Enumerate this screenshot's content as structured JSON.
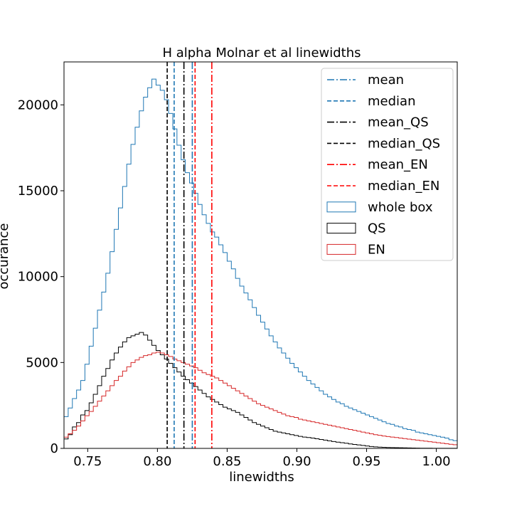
{
  "chart_data": {
    "type": "histogram",
    "title": "H alpha Molnar et al linewidths",
    "xlabel": "linewidths",
    "ylabel": "occurance",
    "xlim": [
      0.733,
      1.015
    ],
    "ylim": [
      0,
      22500
    ],
    "xticks": [
      0.75,
      0.8,
      0.85,
      0.9,
      0.95,
      1.0
    ],
    "xtick_labels": [
      "0.75",
      "0.80",
      "0.85",
      "0.90",
      "0.95",
      "1.00"
    ],
    "yticks": [
      0,
      5000,
      10000,
      15000,
      20000
    ],
    "ytick_labels": [
      "0",
      "5000",
      "10000",
      "15000",
      "20000"
    ],
    "grid": false,
    "legend_position": "top-right",
    "bins": {
      "start": 0.733,
      "width": 0.003,
      "count": 94
    },
    "series": [
      {
        "name": "whole box",
        "color": "#1f77b4",
        "values": [
          1850,
          2350,
          2900,
          3400,
          3950,
          4900,
          5950,
          7000,
          8050,
          9100,
          10200,
          11450,
          12750,
          14000,
          15250,
          16550,
          17700,
          18700,
          19650,
          20450,
          21000,
          21500,
          21150,
          20850,
          20300,
          19500,
          18600,
          17650,
          16800,
          16050,
          15450,
          14850,
          14200,
          13600,
          13100,
          12600,
          12300,
          11850,
          11400,
          10900,
          10450,
          9900,
          9450,
          9050,
          8650,
          8200,
          7750,
          7350,
          6950,
          6550,
          6200,
          5850,
          5550,
          5250,
          4950,
          4700,
          4450,
          4200,
          3950,
          3750,
          3550,
          3350,
          3150,
          3000,
          2850,
          2700,
          2600,
          2450,
          2350,
          2250,
          2150,
          2050,
          1950,
          1850,
          1750,
          1650,
          1550,
          1450,
          1400,
          1300,
          1250,
          1150,
          1100,
          1050,
          950,
          900,
          850,
          800,
          750,
          700,
          650,
          600,
          500,
          450
        ]
      },
      {
        "name": "QS",
        "color": "#000000",
        "values": [
          550,
          800,
          1250,
          1500,
          1950,
          2200,
          2650,
          3150,
          3650,
          4200,
          4650,
          5150,
          5550,
          5900,
          6200,
          6450,
          6550,
          6650,
          6750,
          6600,
          6300,
          6000,
          5700,
          5450,
          5200,
          4950,
          4700,
          4450,
          4200,
          4000,
          3800,
          3600,
          3400,
          3200,
          3000,
          2850,
          2700,
          2550,
          2400,
          2300,
          2200,
          2100,
          1950,
          1800,
          1650,
          1500,
          1400,
          1300,
          1200,
          1100,
          1000,
          950,
          900,
          850,
          800,
          750,
          700,
          660,
          630,
          600,
          560,
          520,
          480,
          440,
          400,
          360,
          330,
          300,
          260,
          230,
          200,
          170,
          140,
          110,
          90,
          70,
          60,
          50,
          45,
          40,
          35,
          30,
          25,
          20,
          15,
          10,
          10,
          10,
          5,
          5,
          5,
          5,
          5,
          5
        ]
      },
      {
        "name": "EN",
        "color": "#d62728",
        "values": [
          650,
          850,
          1050,
          1300,
          1600,
          1900,
          2150,
          2450,
          2750,
          3050,
          3350,
          3650,
          3950,
          4200,
          4500,
          4750,
          5000,
          5150,
          5300,
          5400,
          5450,
          5550,
          5600,
          5550,
          5450,
          5350,
          5200,
          5100,
          5000,
          4900,
          4800,
          4700,
          4550,
          4400,
          4300,
          4200,
          4100,
          3950,
          3800,
          3650,
          3500,
          3350,
          3200,
          3050,
          2900,
          2750,
          2600,
          2500,
          2400,
          2300,
          2200,
          2100,
          2000,
          1900,
          1850,
          1800,
          1700,
          1650,
          1600,
          1550,
          1500,
          1450,
          1400,
          1350,
          1300,
          1250,
          1200,
          1150,
          1100,
          1050,
          1000,
          950,
          900,
          850,
          800,
          760,
          720,
          690,
          660,
          630,
          600,
          570,
          540,
          510,
          480,
          450,
          420,
          390,
          360,
          330,
          300,
          270,
          240,
          210
        ]
      }
    ],
    "vlines": [
      {
        "name": "mean",
        "x": 0.825,
        "color": "#1f77b4",
        "style": "dashdot"
      },
      {
        "name": "median",
        "x": 0.812,
        "color": "#1f77b4",
        "style": "dashed"
      },
      {
        "name": "mean_QS",
        "x": 0.819,
        "color": "#000000",
        "style": "dashdot"
      },
      {
        "name": "median_QS",
        "x": 0.807,
        "color": "#000000",
        "style": "dashed"
      },
      {
        "name": "mean_EN",
        "x": 0.839,
        "color": "#ff0000",
        "style": "dashdot"
      },
      {
        "name": "median_EN",
        "x": 0.827,
        "color": "#ff0000",
        "style": "dashed"
      }
    ],
    "legend": [
      {
        "label": "mean",
        "kind": "line",
        "color": "#1f77b4",
        "style": "dashdot"
      },
      {
        "label": "median",
        "kind": "line",
        "color": "#1f77b4",
        "style": "dashed"
      },
      {
        "label": "mean_QS",
        "kind": "line",
        "color": "#000000",
        "style": "dashdot"
      },
      {
        "label": "median_QS",
        "kind": "line",
        "color": "#000000",
        "style": "dashed"
      },
      {
        "label": "mean_EN",
        "kind": "line",
        "color": "#ff0000",
        "style": "dashdot"
      },
      {
        "label": "median_EN",
        "kind": "line",
        "color": "#ff0000",
        "style": "dashed"
      },
      {
        "label": "whole box",
        "kind": "patch",
        "color": "#1f77b4"
      },
      {
        "label": "QS",
        "kind": "patch",
        "color": "#000000"
      },
      {
        "label": "EN",
        "kind": "patch",
        "color": "#d62728"
      }
    ]
  }
}
